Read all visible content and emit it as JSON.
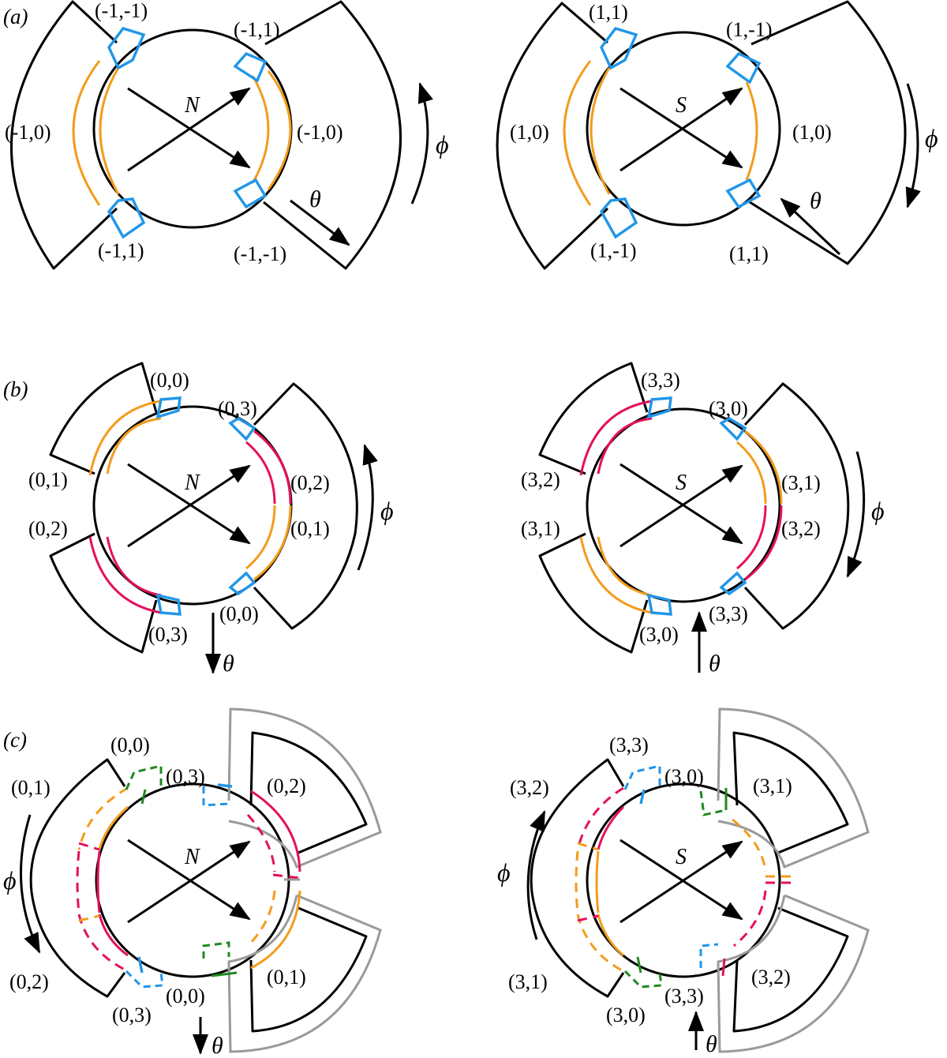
{
  "figure": {
    "panel_a": {
      "label": "(a)",
      "left": {
        "pole": "N",
        "phi": "ϕ",
        "theta": "θ",
        "labels": {
          "top_left": "(-1,-1)",
          "top_right": "(-1,1)",
          "mid_left": "(-1,0)",
          "mid_right": "(-1,0)",
          "bottom_left": "(-1,1)",
          "bottom_right": "(-1,-1)"
        }
      },
      "right": {
        "pole": "S",
        "phi": "ϕ",
        "theta": "θ",
        "labels": {
          "top_left": "(1,1)",
          "top_right": "(1,-1)",
          "mid_left": "(1,0)",
          "mid_right": "(1,0)",
          "bottom_left": "(1,-1)",
          "bottom_right": "(1,1)"
        }
      }
    },
    "panel_b": {
      "label": "(b)",
      "left": {
        "pole": "N",
        "phi": "ϕ",
        "theta": "θ",
        "labels": {
          "top": "(0,0)",
          "top_right": "(0,3)",
          "left_upper": "(0,1)",
          "right_upper": "(0,2)",
          "left_lower": "(0,2)",
          "right_lower": "(0,1)",
          "bottom_left": "(0,3)",
          "bottom_right": "(0,0)"
        }
      },
      "right": {
        "pole": "S",
        "phi": "ϕ",
        "theta": "θ",
        "labels": {
          "top": "(3,3)",
          "top_right": "(3,0)",
          "left_upper": "(3,2)",
          "right_upper": "(3,1)",
          "left_lower": "(3,1)",
          "right_lower": "(3,2)",
          "bottom_left": "(3,0)",
          "bottom_right": "(3,3)"
        }
      }
    },
    "panel_c": {
      "label": "(c)",
      "left": {
        "pole": "N",
        "phi": "ϕ",
        "theta": "θ",
        "labels": {
          "top": "(0,0)",
          "top_right": "(0,3)",
          "left_top": "(0,1)",
          "right_upper": "(0,2)",
          "left_bottom": "(0,2)",
          "right_lower": "(0,1)",
          "bottom_left": "(0,3)",
          "bottom_right": "(0,0)"
        }
      },
      "right": {
        "pole": "S",
        "phi": "ϕ",
        "theta": "θ",
        "labels": {
          "top": "(3,3)",
          "top_right": "(3,0)",
          "left_top": "(3,2)",
          "right_upper": "(3,1)",
          "left_bottom": "(3,1)",
          "right_lower": "(3,2)",
          "bottom_left": "(3,0)",
          "bottom_right": "(3,3)"
        }
      }
    }
  }
}
